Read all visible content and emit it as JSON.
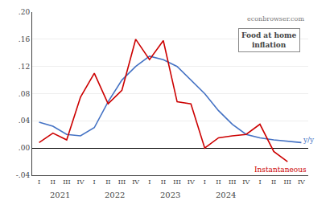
{
  "chart_data": {
    "type": "line",
    "categories": [
      "I",
      "II",
      "III",
      "IV",
      "I",
      "II",
      "III",
      "IV",
      "I",
      "II",
      "III",
      "IV",
      "I",
      "II",
      "III",
      "IV",
      "I",
      "II",
      "III",
      "IV"
    ],
    "series": [
      {
        "color": "#4472c4",
        "values": [
          0.038,
          0.032,
          0.02,
          0.018,
          0.03,
          0.068,
          0.1,
          0.12,
          0.135,
          0.13,
          0.12,
          0.1,
          0.08,
          0.055,
          0.035,
          0.02,
          0.015,
          0.012,
          0.01,
          0.008
        ]
      },
      {
        "color": "#cc0000",
        "values": [
          0.008,
          0.022,
          0.012,
          0.075,
          0.11,
          0.065,
          0.085,
          0.16,
          0.13,
          0.158,
          0.068,
          0.065,
          0.0,
          0.015,
          0.018,
          0.02,
          0.035,
          -0.005,
          -0.02,
          null
        ]
      }
    ],
    "ylim": [
      -0.04,
      0.2
    ],
    "yticks": [
      {
        "value": -0.04,
        "label": "-.04"
      },
      {
        "value": 0.0,
        "label": ".00"
      },
      {
        "value": 0.04,
        "label": ".04"
      },
      {
        "value": 0.08,
        "label": ".08"
      },
      {
        "value": 0.12,
        "label": ".12"
      },
      {
        "value": 0.16,
        "label": ".16"
      },
      {
        "value": 0.2,
        "label": ".20"
      }
    ],
    "grid": true,
    "annotations": [
      {
        "text": "2021",
        "x": 1.5
      },
      {
        "text": "2022",
        "x": 5.5
      },
      {
        "text": "2023",
        "x": 9.5
      },
      {
        "text": "2024",
        "x": 13.5
      },
      {
        "text": "y/y",
        "x": 19.0,
        "y": 0.012,
        "color": "#4472c4"
      },
      {
        "text": "Instantaneous",
        "x": 15.5,
        "y": -0.032,
        "color": "#cc0000"
      },
      {
        "text": "econbrowser.com"
      },
      {
        "text": "Food at home\ninflation"
      }
    ]
  }
}
